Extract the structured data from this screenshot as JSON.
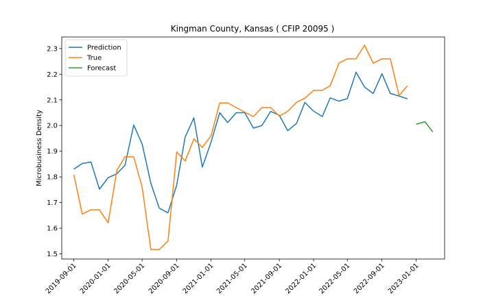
{
  "chart_data": {
    "type": "line",
    "title": "Kingman County, Kansas ( CFIP 20095 )",
    "xlabel": "",
    "ylabel": "Microbusiness Density",
    "ylim": [
      1.48,
      2.345
    ],
    "yticks": [
      "1.5",
      "1.6",
      "1.7",
      "1.8",
      "1.9",
      "2.0",
      "2.1",
      "2.2",
      "2.3"
    ],
    "xticks": [
      "2019-09-01",
      "2020-01-01",
      "2020-05-01",
      "2020-09-01",
      "2021-01-01",
      "2021-05-01",
      "2021-09-01",
      "2022-01-01",
      "2022-05-01",
      "2022-09-01",
      "2023-01-01"
    ],
    "legend_position": "top-left",
    "grid": false,
    "x_start": "2019-09-01",
    "series": [
      {
        "name": "Prediction",
        "color": "#1f77b4",
        "start_index": 0,
        "values": [
          1.83,
          1.852,
          1.858,
          1.752,
          1.797,
          1.812,
          1.845,
          2.002,
          1.928,
          1.775,
          1.678,
          1.66,
          1.768,
          1.955,
          2.03,
          1.838,
          1.935,
          2.05,
          2.012,
          2.05,
          2.05,
          1.99,
          2.0,
          2.055,
          2.04,
          1.98,
          2.008,
          2.09,
          2.056,
          2.035,
          2.108,
          2.095,
          2.105,
          2.208,
          2.15,
          2.125,
          2.202,
          2.125,
          2.115,
          2.104
        ]
      },
      {
        "name": "True",
        "color": "#ff7f0e",
        "start_index": 0,
        "values": [
          1.808,
          1.655,
          1.672,
          1.672,
          1.621,
          1.825,
          1.878,
          1.878,
          1.76,
          1.517,
          1.517,
          1.55,
          1.897,
          1.862,
          1.948,
          1.915,
          1.96,
          2.088,
          2.088,
          2.07,
          2.052,
          2.035,
          2.07,
          2.07,
          2.037,
          2.055,
          2.09,
          2.107,
          2.137,
          2.137,
          2.155,
          2.243,
          2.26,
          2.26,
          2.313,
          2.243,
          2.26,
          2.26,
          2.117,
          2.155
        ]
      },
      {
        "name": "Forecast",
        "color": "#2ca02c",
        "start_index": 40,
        "values": [
          2.005,
          2.015,
          1.975
        ]
      }
    ]
  }
}
